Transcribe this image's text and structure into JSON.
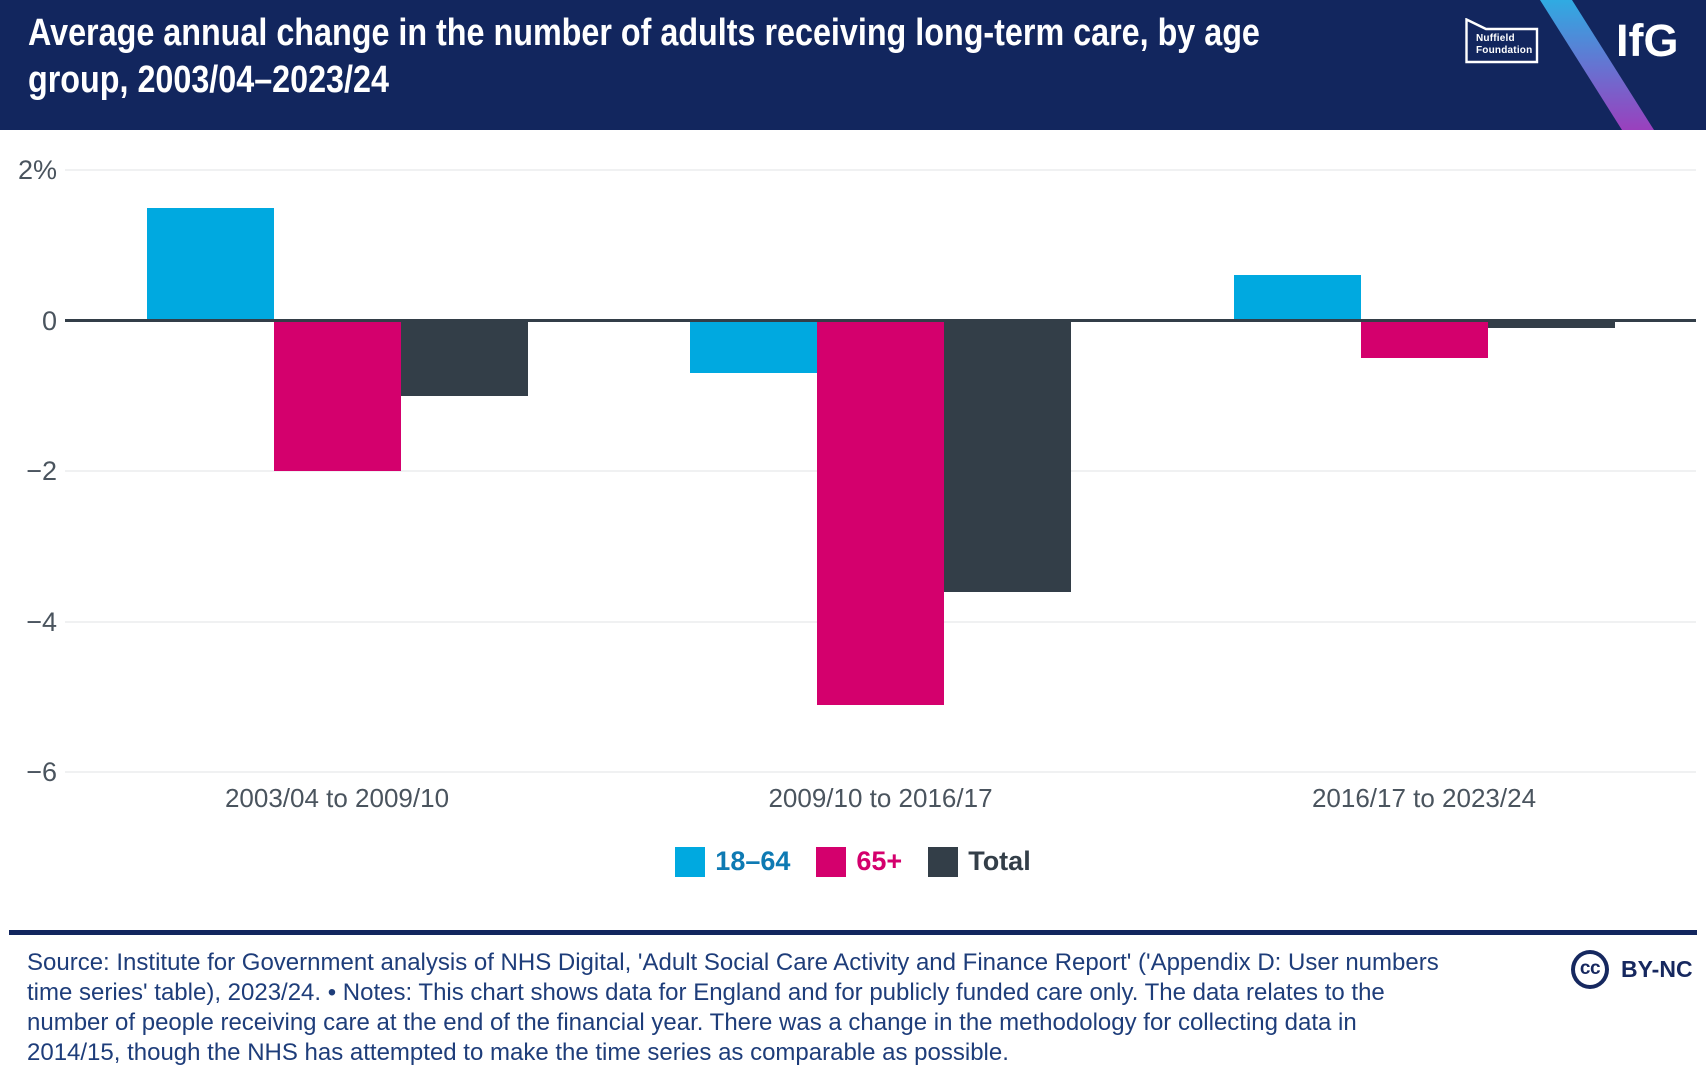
{
  "header": {
    "title_line1": "Average annual change in the number of adults receiving long-term care, by age",
    "title_line2": "group, 2003/04–2023/24",
    "nuffield": {
      "line1": "Nuffield",
      "line2": "Foundation"
    },
    "ifg": "IfG"
  },
  "chart_data": {
    "type": "bar",
    "title": "Average annual change in the number of adults receiving long-term care, by age group, 2003/04–2023/24",
    "unit": "percent",
    "categories": [
      "2003/04 to 2009/10",
      "2009/10 to 2016/17",
      "2016/17 to 2023/24"
    ],
    "series": [
      {
        "name": "18–64",
        "color": "#00a9e0",
        "label_color": "#0e7ab3",
        "values": [
          1.5,
          -0.7,
          0.6
        ]
      },
      {
        "name": "65+",
        "color": "#d4006d",
        "label_color": "#d4006d",
        "values": [
          -2.0,
          -5.1,
          -0.5
        ]
      },
      {
        "name": "Total",
        "color": "#333e48",
        "label_color": "#333e48",
        "values": [
          -1.0,
          -3.6,
          -0.1
        ]
      }
    ],
    "yticks": [
      {
        "label": "2%",
        "value": 2
      },
      {
        "label": "0",
        "value": 0
      },
      {
        "label": "−2",
        "value": -2
      },
      {
        "label": "−4",
        "value": -4
      },
      {
        "label": "−6",
        "value": -6
      }
    ],
    "ylim": [
      -6.6,
      2.4
    ],
    "xlabel": "",
    "ylabel": "",
    "grid": "horizontal",
    "legend_position": "bottom"
  },
  "footer": {
    "lines": [
      "Source: Institute for Government analysis of NHS Digital, 'Adult Social Care Activity and Finance Report' ('Appendix D: User numbers",
      "time series' table), 2023/24. • Notes: This chart shows data for England and for publicly funded care only. The data relates to the",
      "number of people receiving care at the end of the financial year. There was a change in the methodology for collecting data in",
      "2014/15, though the NHS has attempted to make the time series as comparable as possible."
    ],
    "cc": "cc",
    "license": "BY-NC"
  }
}
